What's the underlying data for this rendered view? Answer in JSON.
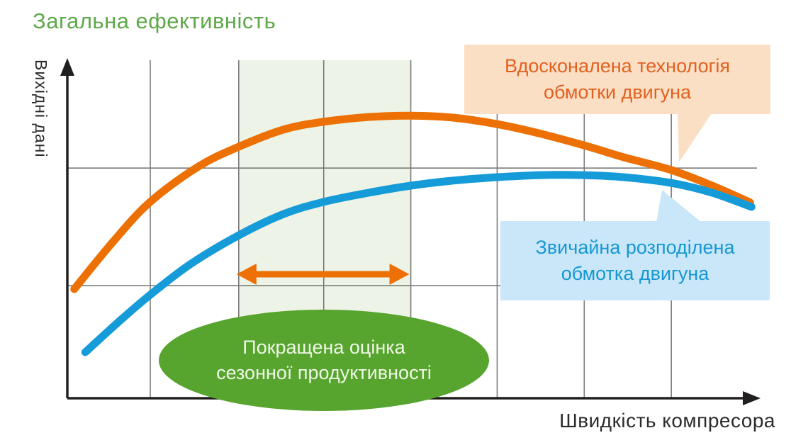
{
  "title": "Загальна ефективність",
  "axis": {
    "x_label": "Швидкість компресора",
    "y_label": "Вихідні дані"
  },
  "annotations": {
    "callout_orange": {
      "full": "Вдосконалена технологія обмотки двигуна",
      "line1": "Вдосконалена технологія",
      "line2": "обмотки двигуна"
    },
    "callout_blue": {
      "full": "Звичайна розподілена обмотка двигуна",
      "line1": "Звичайна розподілена",
      "line2": "обмотка двигуна"
    },
    "ellipse": {
      "full": "Покращена оцінка сезонної продуктивності",
      "line1": "Покращена оцінка",
      "line2": "сезонної продуктивності"
    }
  },
  "colors": {
    "title_green": "#5fa84a",
    "series_orange": "#ec7004",
    "series_blue": "#169bd9",
    "band_green": "#edf3e6",
    "grid_gray": "#7b7b78",
    "axis_black": "#221f1f",
    "callout_orange_bg": "#fbdfc5",
    "callout_orange_text": "#e2611f",
    "callout_blue_bg": "#c9e7f8",
    "callout_blue_text": "#1697d4",
    "ellipse_bg": "#57a52e",
    "ellipse_text": "#eff7e7"
  },
  "chart_data": {
    "type": "line",
    "title": "Загальна ефективність",
    "xlabel": "Швидкість компресора",
    "ylabel": "Вихідні дані",
    "axes_quantitative": false,
    "xlim": [
      0,
      100
    ],
    "ylim": [
      0,
      100
    ],
    "grid": true,
    "grid_x": [
      12.0,
      24.8,
      37.1,
      49.7,
      62.2,
      74.8,
      87.4
    ],
    "grid_y": [
      33.3,
      68.1
    ],
    "legend_position": "inline-callouts",
    "series": [
      {
        "name": "Вдосконалена технологія обмотки двигуна",
        "color": "#ec7004",
        "x": [
          1.0,
          6.7,
          12.0,
          19.0,
          24.8,
          31.3,
          37.1,
          43.6,
          49.7,
          55.9,
          62.2,
          68.2,
          74.8,
          80.5,
          87.4,
          93.3,
          98.8
        ],
        "y": [
          32.3,
          46.5,
          58.1,
          68.6,
          74.4,
          79.5,
          81.8,
          83.2,
          83.6,
          83.0,
          81.1,
          78.4,
          74.8,
          71.3,
          67.5,
          62.9,
          57.9
        ]
      },
      {
        "name": "Звичайна розподілена обмотка двигуна",
        "color": "#169bd9",
        "x": [
          2.6,
          7.7,
          12.0,
          17.9,
          24.8,
          31.3,
          37.1,
          43.6,
          49.7,
          55.9,
          62.2,
          68.2,
          74.8,
          80.5,
          87.4,
          93.3,
          99.0
        ],
        "y": [
          13.6,
          23.1,
          30.6,
          39.8,
          48.2,
          54.5,
          58.1,
          60.8,
          62.9,
          64.4,
          65.4,
          66.0,
          66.0,
          65.4,
          63.7,
          60.8,
          56.6
        ]
      }
    ],
    "highlight_band": {
      "x_start": 24.8,
      "x_end": 49.7,
      "label": "Покращена оцінка сезонної продуктивності"
    },
    "range_arrow": {
      "x_start": 24.8,
      "x_end": 49.7,
      "y": 36.7
    }
  }
}
